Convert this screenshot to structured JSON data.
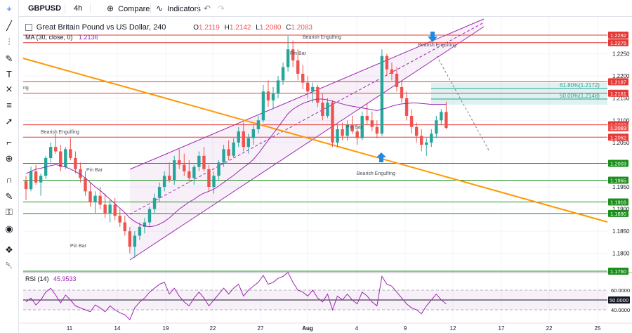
{
  "toolbar": {
    "symbol": "GBPUSD",
    "interval": "4h",
    "compare_label": "Compare",
    "indicators_label": "Indicators"
  },
  "legend": {
    "title": "Great Britain Pound vs US Dollar, 240",
    "open_label": "O",
    "open": "1.2119",
    "high_label": "H",
    "high": "1.2142",
    "low_label": "L",
    "low": "1.2080",
    "close_label": "C",
    "close": "1.2083",
    "ma_label": "MA (30, close, 0)",
    "ma_value": "1.2136"
  },
  "rsi_legend": {
    "label": "RSI (14)",
    "value": "45.9533"
  },
  "sidebar_tools": [
    "crosshair-icon",
    "trend-line-icon",
    "fib-tool-icon",
    "brush-icon",
    "text-tool-icon",
    "pattern-icon",
    "measure-icon",
    "arrow-icon",
    "ruler-icon",
    "zoom-icon",
    "magnet-icon",
    "lock-drawing-icon",
    "lock-icon",
    "eye-icon",
    "layers-icon",
    "trash-icon"
  ],
  "colors": {
    "up": "#26a69a",
    "down": "#ef5350",
    "channel": "#9c27b0",
    "trendline": "#ff9800",
    "resistance": "#e53935",
    "support": "#1b8e1b",
    "ma": "#9c27b0",
    "fib": "#26a69a",
    "axis_text": "#131722"
  },
  "chart_data": {
    "type": "candlestick",
    "price_axis": {
      "ticks": [
        "1.2250",
        "1.2200",
        "1.2150",
        "1.2100",
        "1.2050",
        "1.1950",
        "1.1900",
        "1.1850",
        "1.1800"
      ],
      "range": [
        1.176,
        1.23
      ]
    },
    "time_axis": {
      "ticks": [
        "11",
        "14",
        "19",
        "22",
        "27",
        "Aug",
        "4",
        "9",
        "12",
        "17",
        "22",
        "25"
      ]
    },
    "levels": [
      {
        "price": "1.2292",
        "kind": "resistance"
      },
      {
        "price": "1.2275",
        "kind": "resistance"
      },
      {
        "price": "1.2187",
        "kind": "resistance"
      },
      {
        "price": "1.2161",
        "kind": "resistance"
      },
      {
        "price": "1.2090",
        "kind": "resistance"
      },
      {
        "price": "1.2062",
        "kind": "resistance"
      },
      {
        "price": "1.2003",
        "kind": "support"
      },
      {
        "price": "1.1965",
        "kind": "support"
      },
      {
        "price": "1.1916",
        "kind": "support"
      },
      {
        "price": "1.1890",
        "kind": "support"
      },
      {
        "price": "1.1760",
        "kind": "support"
      }
    ],
    "last_price": "1.2083",
    "fib_levels": [
      {
        "label": "61.80%(1.2172)",
        "value": 1.2172
      },
      {
        "label": "50.00%(1.2148)",
        "value": 1.2148
      }
    ],
    "annotations": [
      "Bearish Engulfing",
      "Pin Bar",
      "Bearish Engulfing",
      "Pin Bar",
      "Pin Bar",
      "Bearish Engulfing",
      "Pin Bar",
      "Bearish Engulfing"
    ],
    "candles": [
      [
        1.1963,
        1.1975,
        1.192,
        1.1945
      ],
      [
        1.1945,
        1.1995,
        1.194,
        1.1985
      ],
      [
        1.1985,
        1.2,
        1.1955,
        1.196
      ],
      [
        1.196,
        1.198,
        1.193,
        1.1975
      ],
      [
        1.1975,
        1.202,
        1.1968,
        1.2015
      ],
      [
        1.2015,
        1.205,
        1.2005,
        1.204
      ],
      [
        1.204,
        1.207,
        1.2025,
        1.203
      ],
      [
        1.203,
        1.2045,
        1.1985,
        1.1995
      ],
      [
        1.1995,
        1.204,
        1.199,
        1.2035
      ],
      [
        1.2035,
        1.206,
        1.201,
        1.2015
      ],
      [
        1.2015,
        1.203,
        1.198,
        1.199
      ],
      [
        1.199,
        1.2005,
        1.196,
        1.197
      ],
      [
        1.197,
        1.1985,
        1.193,
        1.194
      ],
      [
        1.194,
        1.196,
        1.1905,
        1.1915
      ],
      [
        1.1915,
        1.194,
        1.189,
        1.193
      ],
      [
        1.193,
        1.195,
        1.19,
        1.191
      ],
      [
        1.191,
        1.1935,
        1.188,
        1.189
      ],
      [
        1.189,
        1.192,
        1.187,
        1.191
      ],
      [
        1.191,
        1.1925,
        1.1875,
        1.1885
      ],
      [
        1.1885,
        1.19,
        1.186,
        1.187
      ],
      [
        1.187,
        1.1885,
        1.184,
        1.185
      ],
      [
        1.185,
        1.186,
        1.18,
        1.1815
      ],
      [
        1.1815,
        1.185,
        1.179,
        1.184
      ],
      [
        1.184,
        1.187,
        1.183,
        1.186
      ],
      [
        1.186,
        1.188,
        1.1845,
        1.187
      ],
      [
        1.187,
        1.1905,
        1.186,
        1.19
      ],
      [
        1.19,
        1.1935,
        1.189,
        1.1925
      ],
      [
        1.1925,
        1.196,
        1.1915,
        1.195
      ],
      [
        1.195,
        1.1985,
        1.194,
        1.1975
      ],
      [
        1.1975,
        1.2005,
        1.196,
        1.1965
      ],
      [
        1.1965,
        1.202,
        1.1955,
        1.201
      ],
      [
        1.201,
        1.2035,
        1.199,
        1.2
      ],
      [
        1.2,
        1.2025,
        1.1975,
        1.1985
      ],
      [
        1.1985,
        1.201,
        1.196,
        1.197
      ],
      [
        1.197,
        1.2,
        1.1955,
        1.1995
      ],
      [
        1.1995,
        1.203,
        1.1985,
        1.202
      ],
      [
        1.202,
        1.204,
        1.1985,
        1.199
      ],
      [
        1.199,
        1.2,
        1.194,
        1.195
      ],
      [
        1.195,
        1.1985,
        1.1935,
        1.1975
      ],
      [
        1.1975,
        1.201,
        1.1965,
        1.2005
      ],
      [
        1.2005,
        1.2045,
        1.1995,
        1.2035
      ],
      [
        1.2035,
        1.2055,
        1.201,
        1.202
      ],
      [
        1.202,
        1.206,
        1.2015,
        1.205
      ],
      [
        1.205,
        1.2085,
        1.204,
        1.2075
      ],
      [
        1.2075,
        1.2095,
        1.203,
        1.204
      ],
      [
        1.204,
        1.207,
        1.2025,
        1.206
      ],
      [
        1.206,
        1.209,
        1.2045,
        1.208
      ],
      [
        1.208,
        1.211,
        1.207,
        1.21
      ],
      [
        1.21,
        1.218,
        1.2095,
        1.2165
      ],
      [
        1.2165,
        1.219,
        1.213,
        1.2145
      ],
      [
        1.2145,
        1.2175,
        1.2125,
        1.216
      ],
      [
        1.216,
        1.22,
        1.215,
        1.219
      ],
      [
        1.219,
        1.223,
        1.218,
        1.222
      ],
      [
        1.222,
        1.229,
        1.221,
        1.226
      ],
      [
        1.226,
        1.228,
        1.222,
        1.2235
      ],
      [
        1.2235,
        1.226,
        1.219,
        1.2205
      ],
      [
        1.2205,
        1.2225,
        1.217,
        1.2185
      ],
      [
        1.2185,
        1.22,
        1.215,
        1.2165
      ],
      [
        1.2165,
        1.2185,
        1.214,
        1.2175
      ],
      [
        1.2175,
        1.218,
        1.213,
        1.214
      ],
      [
        1.214,
        1.216,
        1.21,
        1.211
      ],
      [
        1.211,
        1.215,
        1.2105,
        1.214
      ],
      [
        1.214,
        1.2145,
        1.204,
        1.205
      ],
      [
        1.205,
        1.209,
        1.204,
        1.208
      ],
      [
        1.208,
        1.2095,
        1.2055,
        1.2065
      ],
      [
        1.2065,
        1.21,
        1.2055,
        1.209
      ],
      [
        1.209,
        1.211,
        1.207,
        1.2075
      ],
      [
        1.2075,
        1.2085,
        1.2045,
        1.206
      ],
      [
        1.206,
        1.212,
        1.2055,
        1.211
      ],
      [
        1.211,
        1.214,
        1.209,
        1.21
      ],
      [
        1.21,
        1.212,
        1.2075,
        1.2085
      ],
      [
        1.2085,
        1.21,
        1.206,
        1.207
      ],
      [
        1.207,
        1.226,
        1.2065,
        1.2245
      ],
      [
        1.2245,
        1.225,
        1.22,
        1.2215
      ],
      [
        1.2215,
        1.223,
        1.219,
        1.2205
      ],
      [
        1.2205,
        1.222,
        1.2165,
        1.2175
      ],
      [
        1.2175,
        1.219,
        1.214,
        1.215
      ],
      [
        1.215,
        1.2165,
        1.21,
        1.211
      ],
      [
        1.211,
        1.2125,
        1.207,
        1.2085
      ],
      [
        1.2085,
        1.2095,
        1.205,
        1.2065
      ],
      [
        1.2065,
        1.208,
        1.203,
        1.2045
      ],
      [
        1.2045,
        1.206,
        1.202,
        1.205
      ],
      [
        1.205,
        1.208,
        1.204,
        1.207
      ],
      [
        1.207,
        1.211,
        1.206,
        1.21
      ],
      [
        1.21,
        1.2125,
        1.209,
        1.2119
      ],
      [
        1.2119,
        1.2142,
        1.208,
        1.2083
      ]
    ],
    "ma": [
      1.198,
      1.1985,
      1.199,
      1.1992,
      1.1995,
      1.1998,
      1.2,
      1.1998,
      1.1995,
      1.199,
      1.1985,
      1.1978,
      1.197,
      1.196,
      1.195,
      1.1942,
      1.1932,
      1.1922,
      1.1912,
      1.1902,
      1.1892,
      1.188,
      1.1872,
      1.1866,
      1.1862,
      1.186,
      1.1862,
      1.1866,
      1.1872,
      1.188,
      1.189,
      1.19,
      1.1908,
      1.1916,
      1.1922,
      1.193,
      1.1936,
      1.194,
      1.1945,
      1.1952,
      1.196,
      1.1968,
      1.1976,
      1.1985,
      1.1994,
      1.2002,
      1.2012,
      1.2025,
      1.204,
      1.2055,
      1.207,
      1.2085,
      1.21,
      1.2115,
      1.2125,
      1.2132,
      1.2138,
      1.2142,
      1.2146,
      1.2148,
      1.2148,
      1.2146,
      1.2143,
      1.214,
      1.2137,
      1.2134,
      1.2132,
      1.213,
      1.2128,
      1.2126,
      1.2124,
      1.2122,
      1.2125,
      1.2128,
      1.2132,
      1.2135,
      1.2137,
      1.2138,
      1.2139,
      1.2139,
      1.2138,
      1.2137,
      1.2136,
      1.2136,
      1.2136,
      1.2136
    ],
    "rsi": {
      "levels": [
        60,
        50,
        40
      ],
      "range": [
        30,
        75
      ],
      "values": [
        48,
        52,
        45,
        50,
        58,
        62,
        55,
        47,
        55,
        50,
        44,
        42,
        40,
        38,
        45,
        42,
        38,
        44,
        40,
        37,
        35,
        30,
        42,
        48,
        52,
        58,
        62,
        66,
        68,
        56,
        62,
        54,
        48,
        44,
        52,
        58,
        52,
        44,
        50,
        56,
        62,
        56,
        62,
        66,
        54,
        60,
        64,
        68,
        75,
        66,
        68,
        72,
        74,
        78,
        68,
        60,
        58,
        54,
        60,
        52,
        48,
        56,
        40,
        54,
        50,
        56,
        50,
        46,
        58,
        54,
        48,
        44,
        74,
        66,
        64,
        58,
        52,
        46,
        42,
        40,
        36,
        44,
        50,
        56,
        50,
        46
      ]
    }
  }
}
